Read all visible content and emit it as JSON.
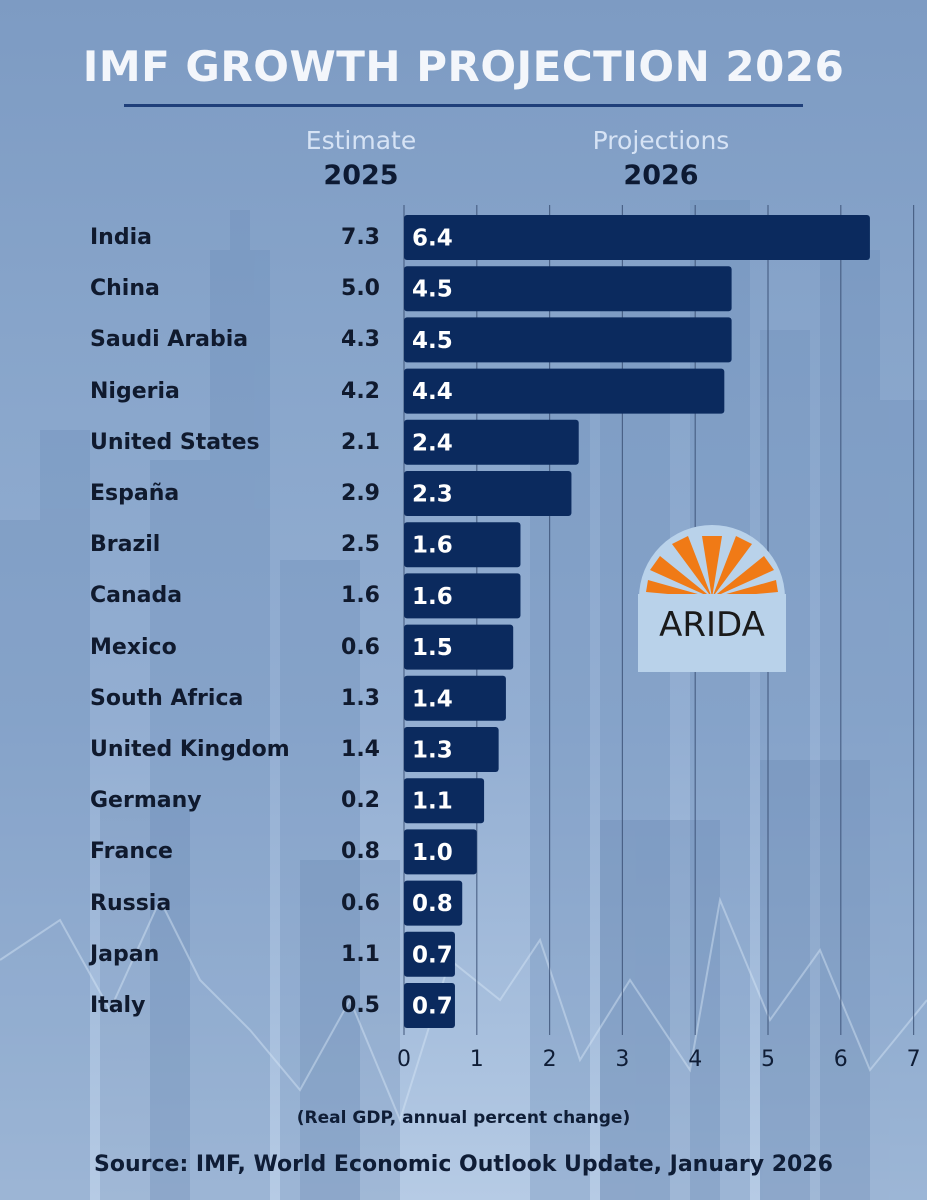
{
  "title": "IMF GROWTH PROJECTION 2026",
  "header": {
    "estimate_label": "Estimate",
    "estimate_year": "2025",
    "projection_label": "Projections",
    "projection_year": "2026"
  },
  "logo": {
    "text": "ARIDA",
    "sun_color": "#f07a16",
    "disc_color": "#b9d2ea"
  },
  "colors": {
    "bar": "#0b2a5e",
    "title_rule": "#1f3f7a",
    "grid": "#3d5378"
  },
  "unit_note": "(Real GDP, annual percent change)",
  "source": "Source: IMF, World Economic Outlook Update, January 2026",
  "chart_data": {
    "type": "bar",
    "orientation": "horizontal",
    "categories": [
      "India",
      "China",
      "Saudi Arabia",
      "Nigeria",
      "United States",
      "España",
      "Brazil",
      "Canada",
      "Mexico",
      "South Africa",
      "United Kingdom",
      "Germany",
      "France",
      "Russia",
      "Japan",
      "Italy"
    ],
    "estimate_2025": [
      "7.3",
      "5.0",
      "4.3",
      "4.2",
      "2.1",
      "2.9",
      "2.5",
      "1.6",
      "0.6",
      "1.3",
      "1.4",
      "0.2",
      "0.8",
      "0.6",
      "1.1",
      "0.5"
    ],
    "series": [
      {
        "values": [
          6.4,
          4.5,
          4.5,
          4.4,
          2.4,
          2.3,
          1.6,
          1.6,
          1.5,
          1.4,
          1.3,
          1.1,
          1.0,
          0.8,
          0.7,
          0.7
        ]
      }
    ],
    "data_labels": [
      "6.4",
      "4.5",
      "4.5",
      "4.4",
      "2.4",
      "2.3",
      "1.6",
      "1.6",
      "1.5",
      "1.4",
      "1.3",
      "1.1",
      "1.0",
      "0.8",
      "0.7",
      "0.7"
    ],
    "xticks": [
      "0",
      "1",
      "2",
      "3",
      "4",
      "5",
      "6",
      "7"
    ],
    "xlim": [
      0,
      7
    ],
    "grid": true
  }
}
